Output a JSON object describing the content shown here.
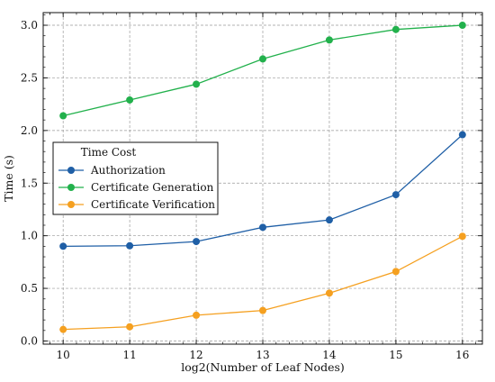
{
  "chart_data": {
    "type": "line",
    "title": "",
    "xlabel": "log2(Number of Leaf Nodes)",
    "ylabel": "Time (s)",
    "x": [
      10,
      11,
      12,
      13,
      14,
      15,
      16
    ],
    "xlim": [
      9.7,
      16.3
    ],
    "ylim": [
      -0.03,
      3.12
    ],
    "xticks": [
      10,
      11,
      12,
      13,
      14,
      15,
      16
    ],
    "yticks": [
      0.0,
      0.5,
      1.0,
      1.5,
      2.0,
      2.5,
      3.0
    ],
    "ytick_labels": [
      "0.0",
      "0.5",
      "1.0",
      "1.5",
      "2.0",
      "2.5",
      "3.0"
    ],
    "grid": true,
    "legend": {
      "title": "Time Cost",
      "placement": "center-left"
    },
    "series": [
      {
        "name": "Authorization",
        "color": "#1f5fa6",
        "values": [
          0.9,
          0.905,
          0.945,
          1.08,
          1.15,
          1.39,
          1.96
        ]
      },
      {
        "name": "Certificate Generation",
        "color": "#22b14c",
        "values": [
          2.14,
          2.29,
          2.44,
          2.68,
          2.86,
          2.96,
          3.0
        ]
      },
      {
        "name": "Certificate Verification",
        "color": "#f5a020",
        "values": [
          0.11,
          0.135,
          0.245,
          0.29,
          0.455,
          0.66,
          0.995
        ]
      }
    ]
  }
}
